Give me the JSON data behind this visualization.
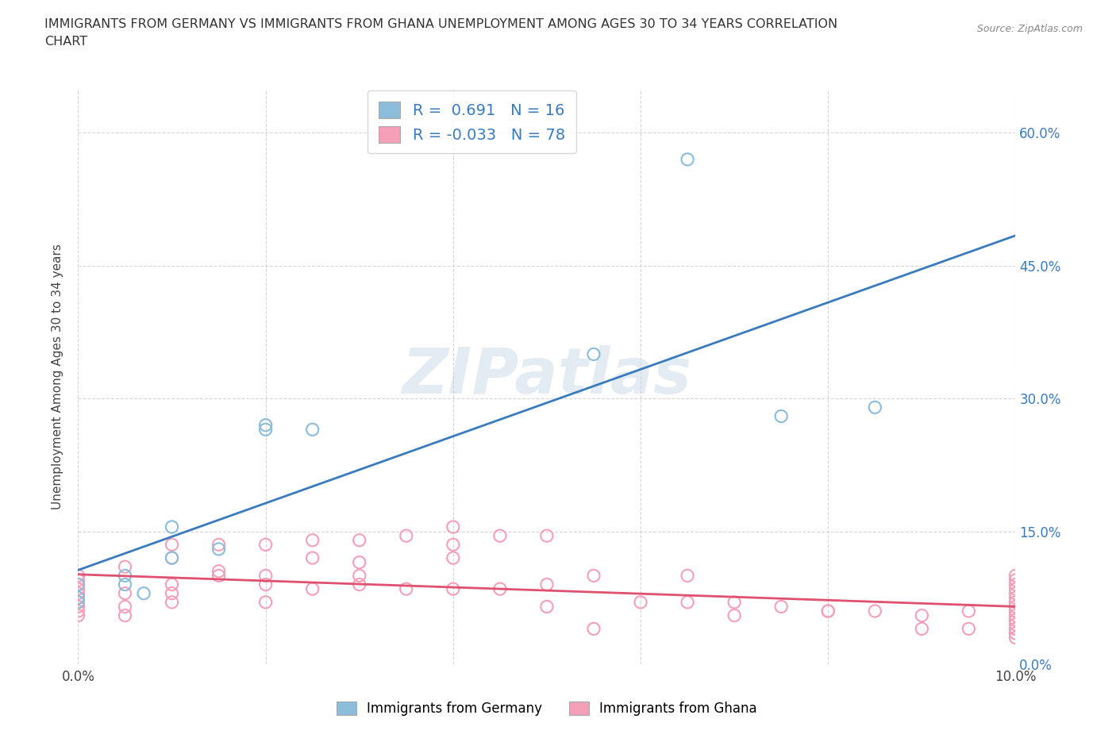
{
  "title_line1": "IMMIGRANTS FROM GERMANY VS IMMIGRANTS FROM GHANA UNEMPLOYMENT AMONG AGES 30 TO 34 YEARS CORRELATION",
  "title_line2": "CHART",
  "source": "Source: ZipAtlas.com",
  "ylabel": "Unemployment Among Ages 30 to 34 years",
  "xlim": [
    0.0,
    0.1
  ],
  "ylim": [
    0.0,
    0.65
  ],
  "xtick_positions": [
    0.0,
    0.02,
    0.04,
    0.06,
    0.08,
    0.1
  ],
  "xticklabels": [
    "0.0%",
    "",
    "",
    "",
    "",
    "10.0%"
  ],
  "ytick_positions": [
    0.0,
    0.15,
    0.3,
    0.45,
    0.6
  ],
  "yticklabels": [
    "0.0%",
    "15.0%",
    "30.0%",
    "45.0%",
    "60.0%"
  ],
  "germany_R": 0.691,
  "germany_N": 16,
  "ghana_R": -0.033,
  "ghana_N": 78,
  "germany_dot_color": "#8bbcda",
  "ghana_dot_color": "#f4a0b8",
  "germany_line_color": "#3a7bbf",
  "ghana_line_color": "#e05070",
  "watermark": "ZIPatlas",
  "germany_x": [
    0.0,
    0.0,
    0.0,
    0.005,
    0.005,
    0.007,
    0.01,
    0.01,
    0.015,
    0.02,
    0.02,
    0.025,
    0.055,
    0.065,
    0.075,
    0.085
  ],
  "germany_y": [
    0.07,
    0.075,
    0.09,
    0.09,
    0.1,
    0.08,
    0.12,
    0.155,
    0.13,
    0.27,
    0.265,
    0.265,
    0.35,
    0.57,
    0.28,
    0.29
  ],
  "ghana_x": [
    0.0,
    0.0,
    0.0,
    0.0,
    0.0,
    0.0,
    0.0,
    0.0,
    0.0,
    0.0,
    0.005,
    0.005,
    0.005,
    0.005,
    0.01,
    0.01,
    0.01,
    0.01,
    0.01,
    0.015,
    0.015,
    0.015,
    0.02,
    0.02,
    0.02,
    0.02,
    0.025,
    0.025,
    0.025,
    0.03,
    0.03,
    0.03,
    0.03,
    0.035,
    0.035,
    0.04,
    0.04,
    0.04,
    0.04,
    0.045,
    0.045,
    0.05,
    0.05,
    0.05,
    0.055,
    0.055,
    0.06,
    0.065,
    0.065,
    0.07,
    0.07,
    0.075,
    0.08,
    0.08,
    0.085,
    0.09,
    0.09,
    0.095,
    0.095,
    0.1,
    0.1,
    0.1,
    0.1,
    0.1,
    0.1,
    0.1,
    0.1,
    0.1,
    0.1,
    0.1,
    0.1,
    0.1,
    0.1,
    0.1,
    0.1,
    0.1,
    0.1
  ],
  "ghana_y": [
    0.055,
    0.06,
    0.065,
    0.07,
    0.075,
    0.08,
    0.085,
    0.09,
    0.095,
    0.1,
    0.055,
    0.065,
    0.08,
    0.11,
    0.07,
    0.08,
    0.09,
    0.12,
    0.135,
    0.1,
    0.105,
    0.135,
    0.07,
    0.09,
    0.1,
    0.135,
    0.085,
    0.12,
    0.14,
    0.09,
    0.1,
    0.115,
    0.14,
    0.085,
    0.145,
    0.085,
    0.12,
    0.135,
    0.155,
    0.085,
    0.145,
    0.065,
    0.09,
    0.145,
    0.04,
    0.1,
    0.07,
    0.07,
    0.1,
    0.055,
    0.07,
    0.065,
    0.06,
    0.06,
    0.06,
    0.04,
    0.055,
    0.04,
    0.06,
    0.03,
    0.035,
    0.04,
    0.045,
    0.05,
    0.055,
    0.06,
    0.065,
    0.07,
    0.075,
    0.08,
    0.085,
    0.09,
    0.095,
    0.1,
    0.04,
    0.05,
    0.06
  ]
}
